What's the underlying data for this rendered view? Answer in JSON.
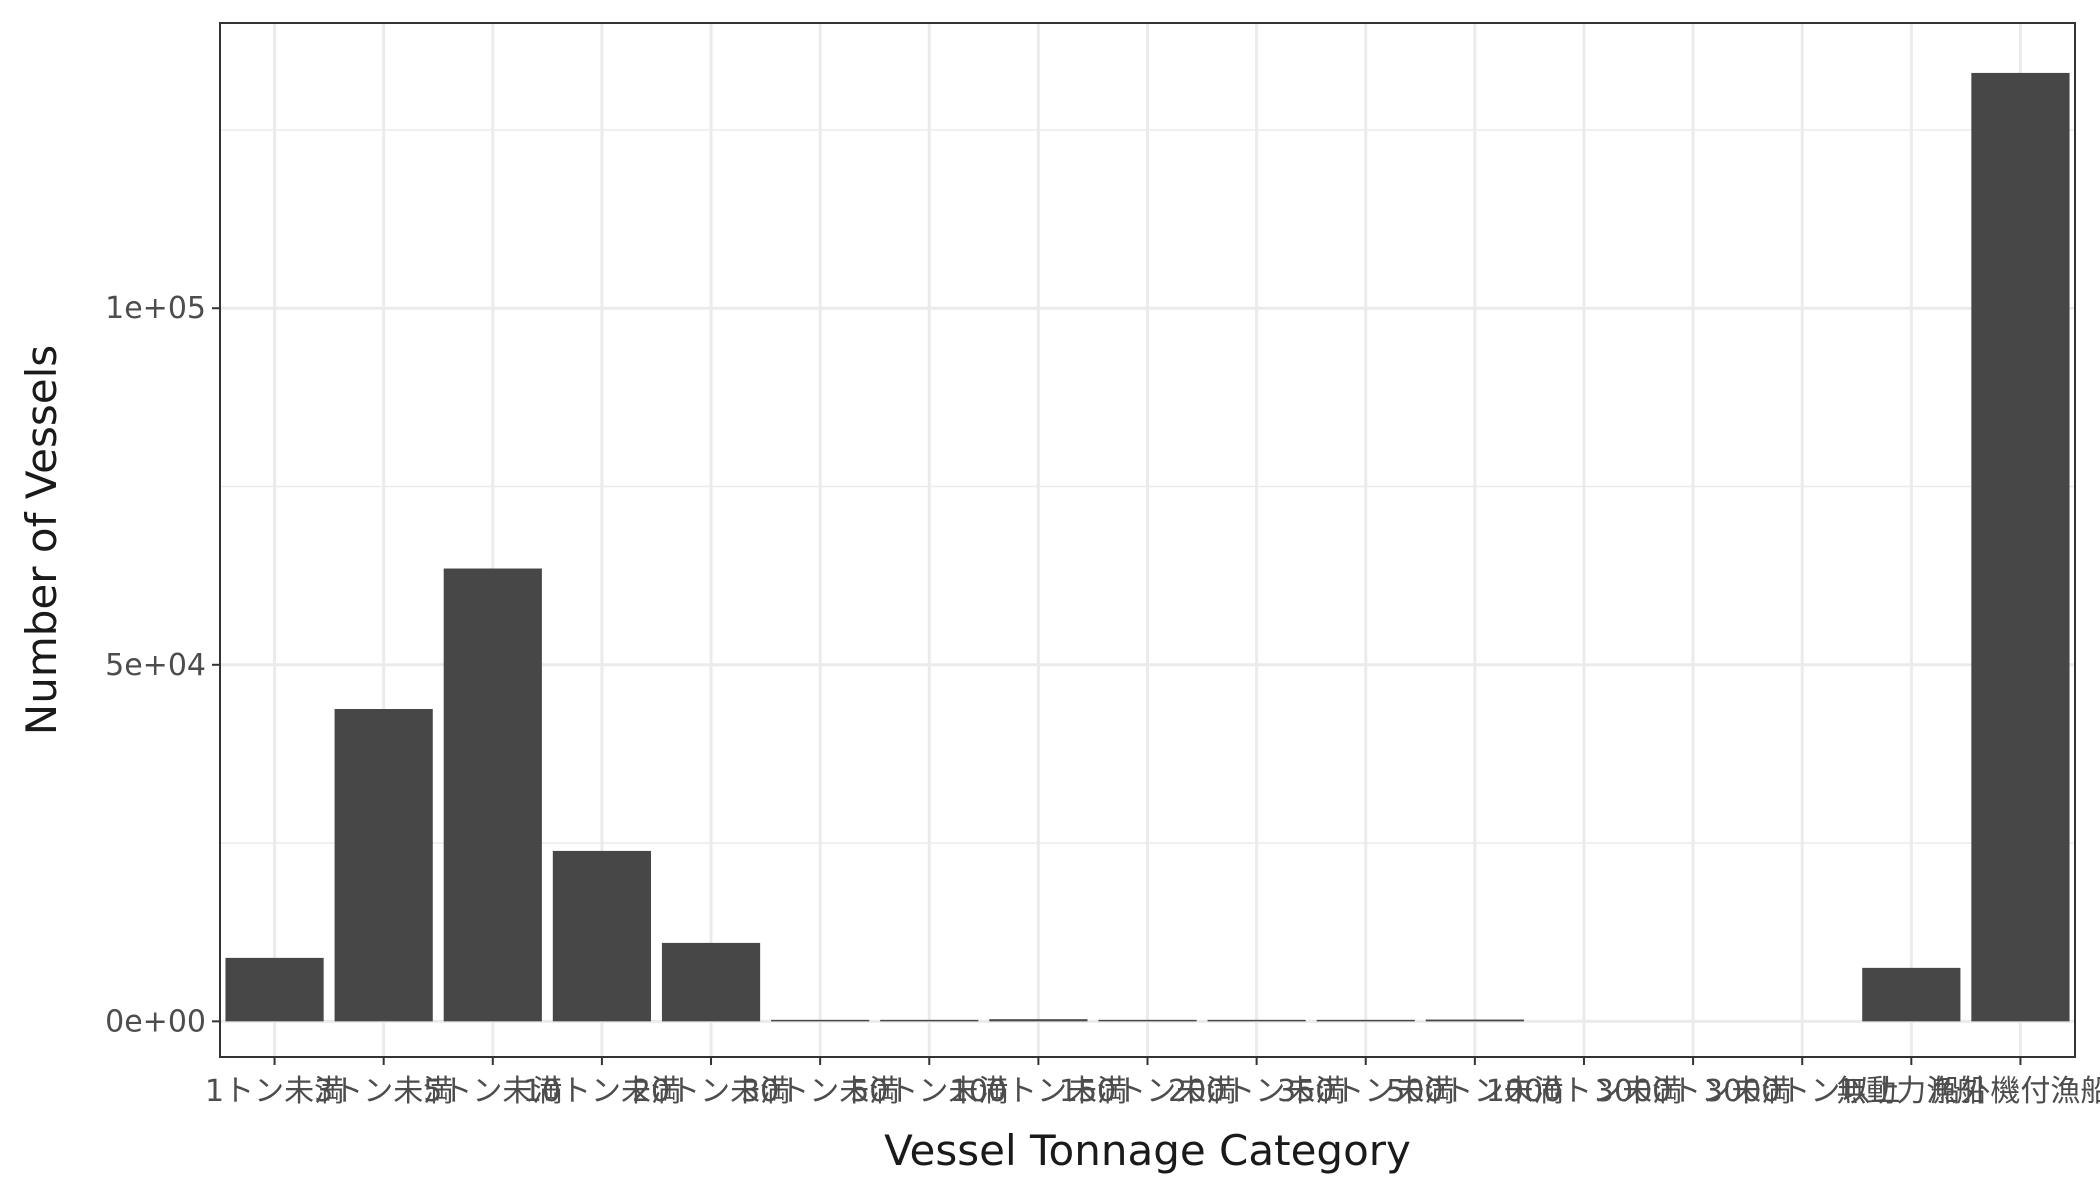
{
  "chart_data": {
    "type": "bar",
    "xlabel": "Vessel Tonnage Category",
    "ylabel": "Number of Vessels",
    "categories": [
      "1トン未満",
      "3トン未満",
      "5トン未満",
      "10トン未満",
      "20トン未満",
      "30トン未満",
      "50トン未満",
      "100トン未満",
      "150トン未満",
      "200トン未満",
      "350トン未満",
      "500トン未満",
      "1000トン未満",
      "3000トン未満",
      "3000トン以上",
      "無動力漁船",
      "船外機付漁船"
    ],
    "values": [
      8900,
      43800,
      63500,
      23900,
      11000,
      100,
      100,
      300,
      50,
      50,
      100,
      250,
      0,
      0,
      0,
      7500,
      133000
    ],
    "ylim": [
      -5000,
      140000
    ],
    "y_ticks": [
      0,
      50000,
      100000
    ],
    "y_tick_labels": [
      "0e+00",
      "5e+04",
      "1e+05"
    ],
    "y_minor_ticks": [
      25000,
      75000,
      125000
    ],
    "grid": true,
    "colors": {
      "bar": "#474747",
      "grid": "#ebebeb",
      "panel_border": "#333333",
      "tick": "#333333"
    }
  }
}
